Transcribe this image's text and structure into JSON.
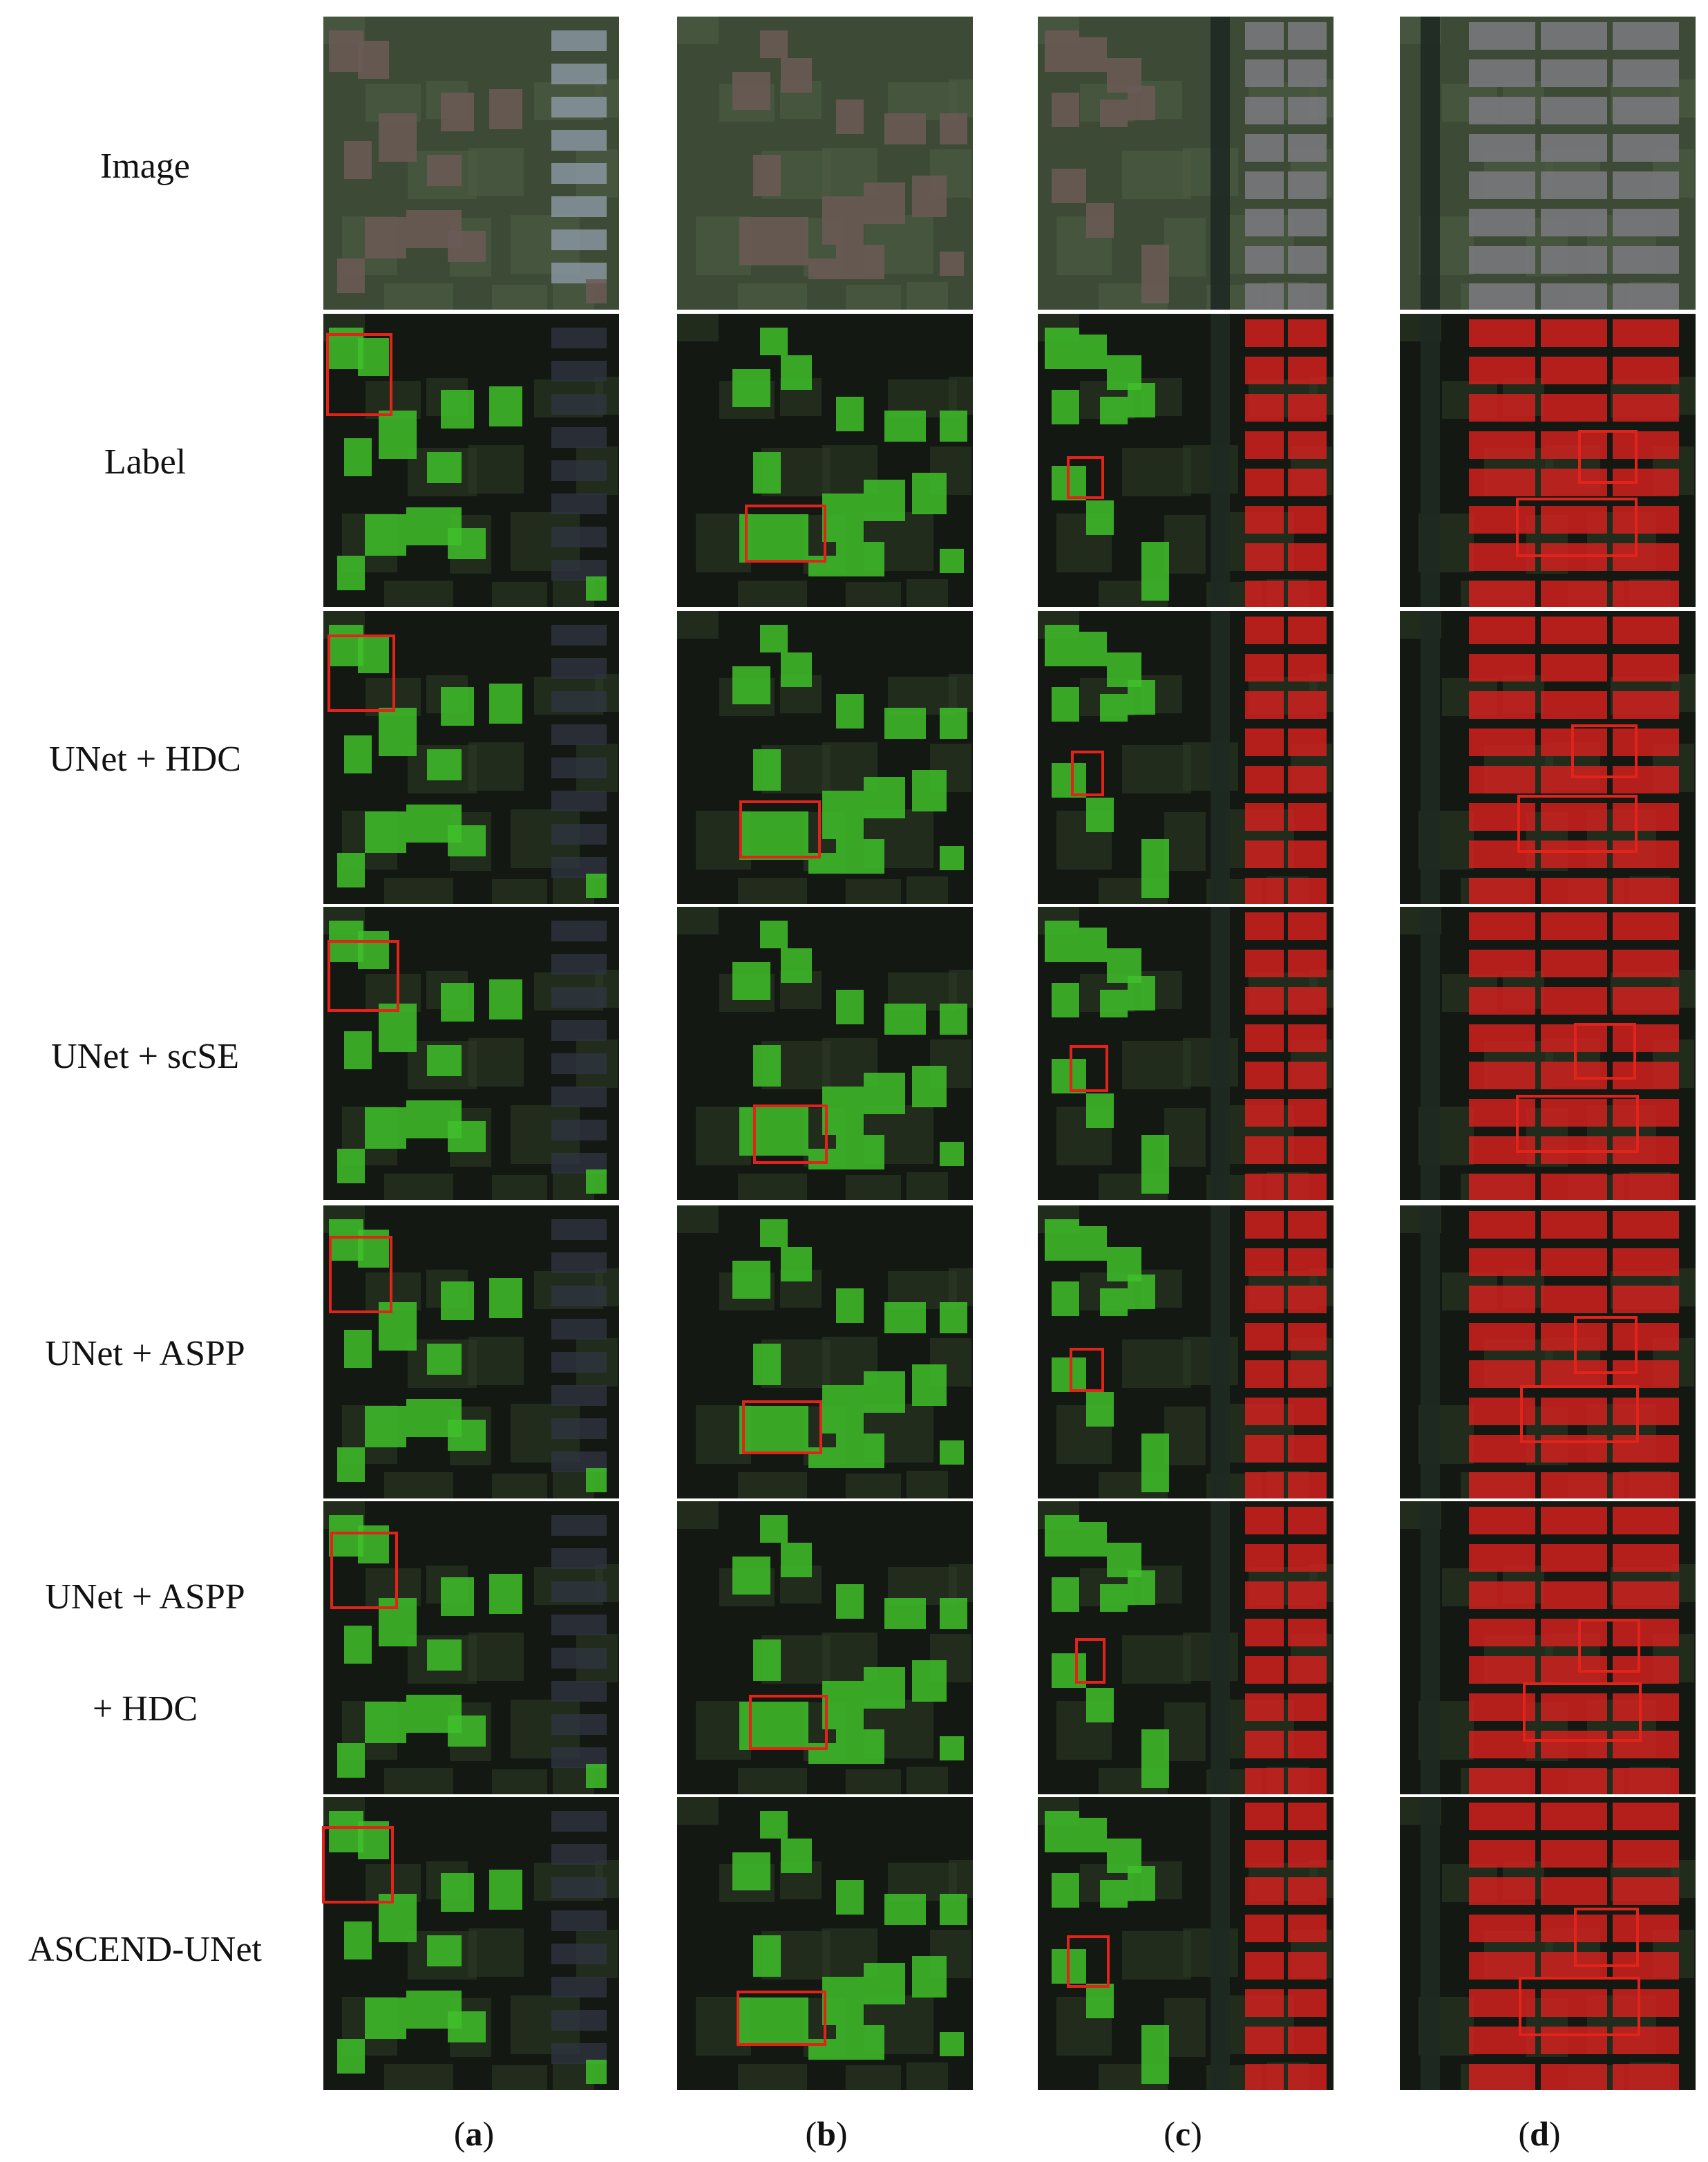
{
  "row_labels": [
    {
      "line1": "Image",
      "line2": ""
    },
    {
      "line1": "Label",
      "line2": ""
    },
    {
      "line1": "UNet + HDC",
      "line2": ""
    },
    {
      "line1": "UNet + scSE",
      "line2": ""
    },
    {
      "line1": "UNet + ASPP",
      "line2": ""
    },
    {
      "line1": "UNet + ASPP",
      "line2": "+ HDC"
    },
    {
      "line1": "ASCEND-UNet",
      "line2": ""
    }
  ],
  "column_captions": [
    {
      "open": "(",
      "letter": "a",
      "close": ")"
    },
    {
      "open": "(",
      "letter": "b",
      "close": ")"
    },
    {
      "open": "(",
      "letter": "c",
      "close": ")"
    },
    {
      "open": "(",
      "letter": "d",
      "close": ")"
    }
  ],
  "colors": {
    "building_class_1": "#3fbf2a",
    "building_class_2": "#d0211e",
    "highlight_box": "#e2231a",
    "background_dark": "#141813",
    "vegetation": "#2a3a24"
  }
}
